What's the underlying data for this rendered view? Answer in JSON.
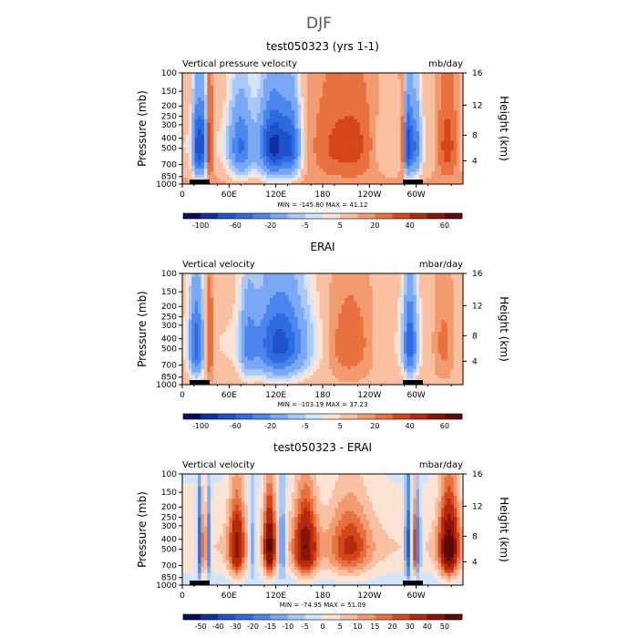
{
  "figure_title": "DJF",
  "chart_data": [
    {
      "type": "heatmap",
      "title": "test050323 (yrs 1-1)",
      "left_label": "Vertical pressure velocity",
      "right_label": "mb/day",
      "ylabel": "Pressure (mb)",
      "ylabel_right": "Height (km)",
      "y_ticks": [
        "100",
        "150",
        "200",
        "250",
        "300",
        "400",
        "500",
        "700",
        "850",
        "1000"
      ],
      "y_ticks_right": [
        "16",
        "12",
        "8",
        "4"
      ],
      "x_ticks": [
        "0",
        "60E",
        "120E",
        "180",
        "120W",
        "60W"
      ],
      "stats_text": "MIN = -145.80   MAX =  41.12",
      "min": -145.8,
      "max": 41.12,
      "colorbar_levels": [
        "-100",
        "-60",
        "-20",
        "-5",
        "5",
        "20",
        "40",
        "60"
      ],
      "ylim": [
        1000,
        100
      ],
      "xlim": [
        0,
        360
      ],
      "colors": [
        "#08085e",
        "#122fa0",
        "#1f52cc",
        "#2c6be0",
        "#4a86ee",
        "#7aa8f4",
        "#a9c8f8",
        "#d4e4fb",
        "#fde3d4",
        "#f9c0a2",
        "#f39b70",
        "#e8713f",
        "#d5461a",
        "#b52a0c",
        "#8a1505",
        "#5c0a03"
      ]
    },
    {
      "type": "heatmap",
      "title": "ERAI",
      "left_label": "Vertical velocity",
      "right_label": "mbar/day",
      "ylabel": "Pressure (mb)",
      "ylabel_right": "Height (km)",
      "y_ticks": [
        "100",
        "150",
        "200",
        "250",
        "300",
        "400",
        "500",
        "700",
        "850",
        "1000"
      ],
      "y_ticks_right": [
        "16",
        "12",
        "8",
        "4"
      ],
      "x_ticks": [
        "0",
        "60E",
        "120E",
        "180",
        "120W",
        "60W"
      ],
      "stats_text": "MIN = -103.19   MAX =  37.23",
      "min": -103.19,
      "max": 37.23,
      "colorbar_levels": [
        "-100",
        "-60",
        "-20",
        "-5",
        "5",
        "20",
        "40",
        "60"
      ],
      "ylim": [
        1000,
        100
      ],
      "xlim": [
        0,
        360
      ],
      "colors": [
        "#08085e",
        "#122fa0",
        "#1f52cc",
        "#2c6be0",
        "#4a86ee",
        "#7aa8f4",
        "#a9c8f8",
        "#d4e4fb",
        "#fde3d4",
        "#f9c0a2",
        "#f39b70",
        "#e8713f",
        "#d5461a",
        "#b52a0c",
        "#8a1505",
        "#5c0a03"
      ]
    },
    {
      "type": "heatmap",
      "title": "test050323 - ERAI",
      "left_label": "Vertical velocity",
      "right_label": "mbar/day",
      "ylabel": "Pressure (mb)",
      "ylabel_right": "Height (km)",
      "y_ticks": [
        "100",
        "150",
        "200",
        "250",
        "300",
        "400",
        "500",
        "700",
        "850",
        "1000"
      ],
      "y_ticks_right": [
        "16",
        "12",
        "8",
        "4"
      ],
      "x_ticks": [
        "0",
        "60E",
        "120E",
        "180",
        "120W",
        "60W"
      ],
      "stats_text": "MIN = -74.95   MAX =  51.09",
      "min": -74.95,
      "max": 51.09,
      "colorbar_levels": [
        "-50",
        "-40",
        "-30",
        "-20",
        "-15",
        "-10",
        "-5",
        "0",
        "5",
        "10",
        "15",
        "20",
        "30",
        "40",
        "50"
      ],
      "ylim": [
        1000,
        100
      ],
      "xlim": [
        0,
        360
      ],
      "colors": [
        "#08085e",
        "#122fa0",
        "#1f52cc",
        "#2c6be0",
        "#4a86ee",
        "#7aa8f4",
        "#a9c8f8",
        "#d4e4fb",
        "#fde3d4",
        "#f9c0a2",
        "#f39b70",
        "#e8713f",
        "#d5461a",
        "#b52a0c",
        "#8a1505",
        "#5c0a03"
      ]
    }
  ]
}
